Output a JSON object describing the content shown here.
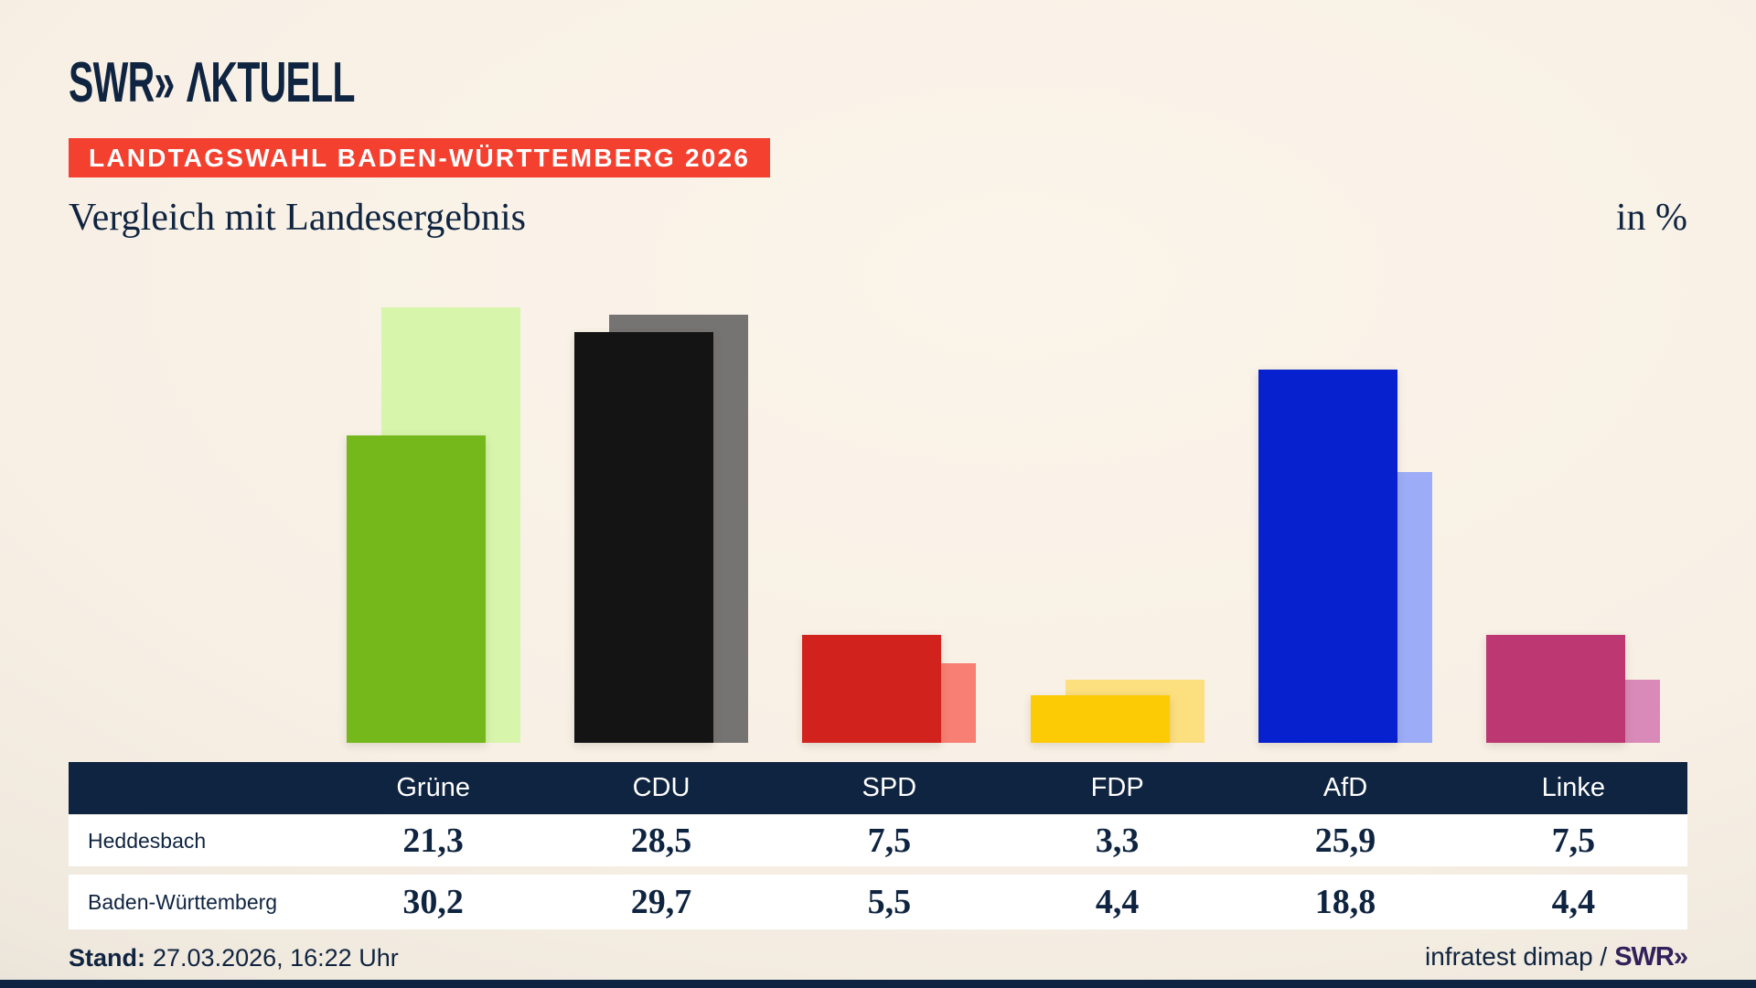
{
  "header": {
    "logo_swr": "SWR»",
    "logo_aktuell": "ΛKTUELL"
  },
  "banner": {
    "label": "LANDTAGSWAHL BADEN-WÜRTTEMBERG 2026",
    "bg_color": "#f4402f",
    "text_color": "#ffffff"
  },
  "subtitle": "Vergleich mit Landesergebnis",
  "unit_label": "in %",
  "chart_data": {
    "type": "bar",
    "title": "Vergleich mit Landesergebnis",
    "unit": "in %",
    "categories": [
      "Grüne",
      "CDU",
      "SPD",
      "FDP",
      "AfD",
      "Linke"
    ],
    "series": [
      {
        "name": "Heddesbach",
        "values": [
          21.3,
          28.5,
          7.5,
          3.3,
          25.9,
          7.5
        ],
        "colors": [
          "#74b81c",
          "#141414",
          "#d2221e",
          "#fccb05",
          "#0721cf",
          "#bd3873"
        ],
        "style": "front"
      },
      {
        "name": "Baden-Württemberg",
        "values": [
          30.2,
          29.7,
          5.5,
          4.4,
          18.8,
          4.4
        ],
        "colors": [
          "#d8f5ac",
          "#767472",
          "#f87f73",
          "#fcdf7e",
          "#9dacf6",
          "#da8ab8"
        ],
        "style": "back, offset right, lighter tint"
      }
    ],
    "ylim": [
      0,
      31
    ],
    "grid": false,
    "axes_shown": false,
    "legend": "values shown in table below chart"
  },
  "table": {
    "columns": [
      "Grüne",
      "CDU",
      "SPD",
      "FDP",
      "AfD",
      "Linke"
    ],
    "rows": [
      {
        "label": "Heddesbach",
        "values": [
          "21,3",
          "28,5",
          "7,5",
          "3,3",
          "25,9",
          "7,5"
        ]
      },
      {
        "label": "Baden-Württemberg",
        "values": [
          "30,2",
          "29,7",
          "5,5",
          "4,4",
          "18,8",
          "4,4"
        ]
      }
    ]
  },
  "footer": {
    "stand_label": "Stand:",
    "stand_value": "27.03.2026, 16:22 Uhr",
    "source_text": "infratest dimap /",
    "source_logo": "SWR»"
  },
  "colors": {
    "navy": "#0f2440",
    "banner_red": "#f4402f",
    "row_background": "#ffffff",
    "footer_logo_purple": "#31215a",
    "background_light": "#f8f0e5",
    "background_corner": "#cbc8c2"
  }
}
